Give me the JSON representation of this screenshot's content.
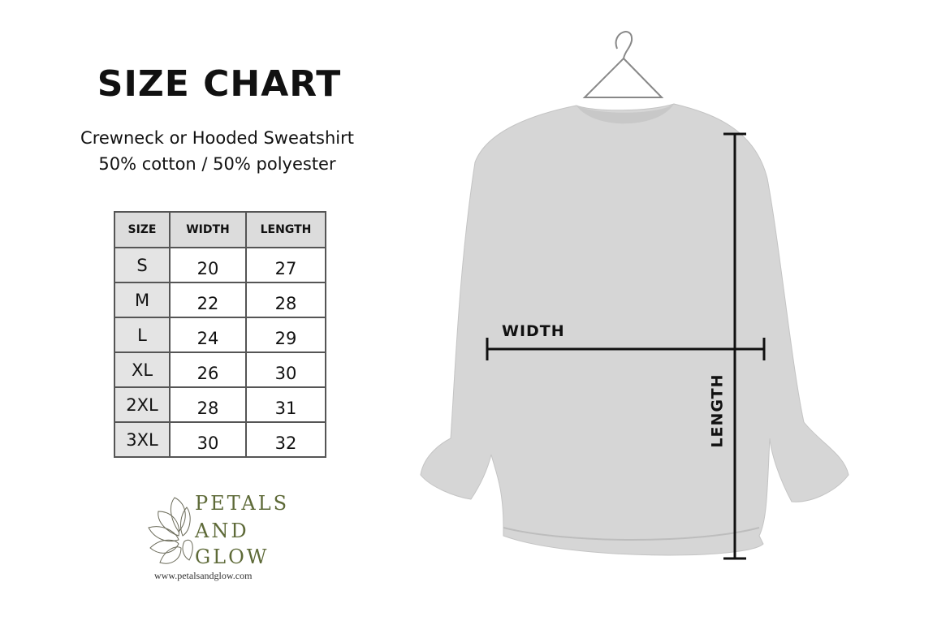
{
  "title": "SIZE CHART",
  "subtitle1": "Crewneck or Hooded Sweatshirt",
  "subtitle2": "50% cotton / 50% polyester",
  "table": {
    "headers": [
      "SIZE",
      "WIDTH",
      "LENGTH"
    ],
    "rows": [
      [
        "S",
        "20",
        "27"
      ],
      [
        "M",
        "22",
        "28"
      ],
      [
        "L",
        "24",
        "29"
      ],
      [
        "XL",
        "26",
        "30"
      ],
      [
        "2XL",
        "28",
        "31"
      ],
      [
        "3XL",
        "30",
        "32"
      ]
    ]
  },
  "brand": {
    "line1": "PETALS",
    "line2": "AND",
    "line3": "GLOW",
    "url": "www.petalsandglow.com",
    "color": "#5e6a38"
  },
  "measure": {
    "width_label": "WIDTH",
    "length_label": "LENGTH"
  }
}
